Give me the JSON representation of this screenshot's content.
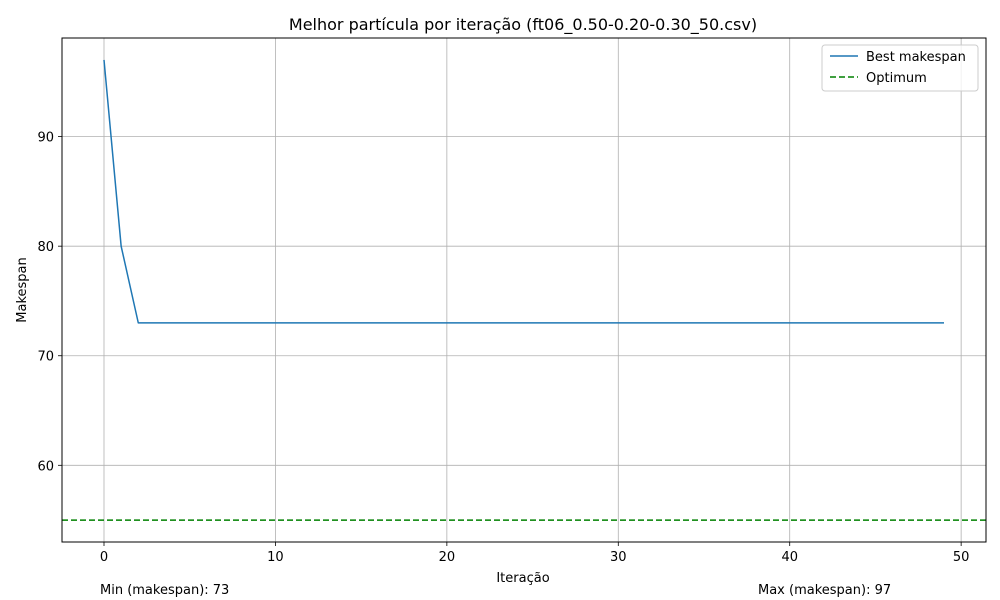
{
  "chart_data": {
    "type": "line",
    "title": "Melhor partícula por iteração (ft06_0.50-0.20-0.30_50.csv)",
    "xlabel": "Iteração",
    "ylabel": "Makespan",
    "xlim": [
      -2.45,
      51.45
    ],
    "ylim": [
      53.0,
      99.0
    ],
    "xticks": [
      0,
      10,
      20,
      30,
      40,
      50
    ],
    "yticks": [
      60,
      70,
      80,
      90
    ],
    "grid": true,
    "legend_position": "top-right",
    "series": [
      {
        "name": "Best makespan",
        "style": "solid",
        "color": "#1f77b4",
        "x": [
          0,
          1,
          2,
          3,
          4,
          5,
          6,
          7,
          8,
          9,
          10,
          11,
          12,
          13,
          14,
          15,
          16,
          17,
          18,
          19,
          20,
          21,
          22,
          23,
          24,
          25,
          26,
          27,
          28,
          29,
          30,
          31,
          32,
          33,
          34,
          35,
          36,
          37,
          38,
          39,
          40,
          41,
          42,
          43,
          44,
          45,
          46,
          47,
          48,
          49
        ],
        "values": [
          97,
          80,
          73,
          73,
          73,
          73,
          73,
          73,
          73,
          73,
          73,
          73,
          73,
          73,
          73,
          73,
          73,
          73,
          73,
          73,
          73,
          73,
          73,
          73,
          73,
          73,
          73,
          73,
          73,
          73,
          73,
          73,
          73,
          73,
          73,
          73,
          73,
          73,
          73,
          73,
          73,
          73,
          73,
          73,
          73,
          73,
          73,
          73,
          73,
          73
        ]
      },
      {
        "name": "Optimum",
        "style": "dashed",
        "color": "#008000",
        "hline": 55
      }
    ],
    "annotations": {
      "min_text": "Min (makespan): 73",
      "max_text": "Max (makespan): 97"
    }
  }
}
